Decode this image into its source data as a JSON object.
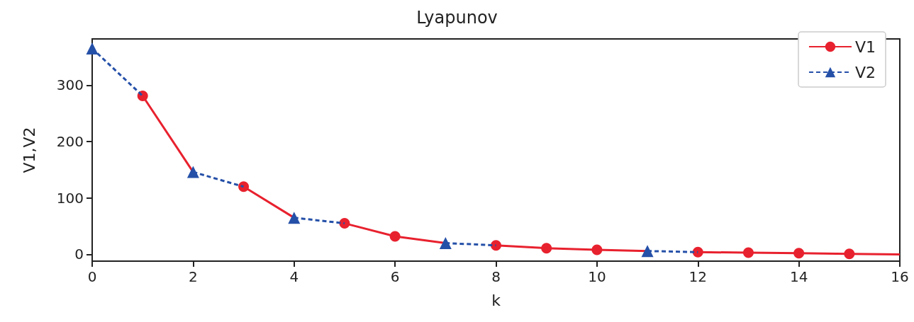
{
  "chart_data": {
    "type": "line",
    "title": "Lyapunov",
    "xlabel": "k",
    "ylabel": "V1,V2",
    "xlim": [
      0,
      16
    ],
    "xticks": [
      0,
      2,
      4,
      6,
      8,
      10,
      12,
      14,
      16
    ],
    "ylim": [
      -12,
      382
    ],
    "yticks": [
      0,
      100,
      200,
      300
    ],
    "grid": false,
    "legend": "top right",
    "series": [
      {
        "name": "V1",
        "color": "#e8212e",
        "marker": "circle",
        "line_style": "solid",
        "x": [
          1,
          2,
          2.5,
          3,
          4,
          4.5,
          5,
          6,
          7,
          7.5,
          8,
          9,
          10,
          11,
          11.5,
          12,
          13,
          14,
          15,
          16
        ],
        "values": [
          281,
          146,
          null,
          120,
          65,
          null,
          55,
          32,
          20,
          null,
          16,
          11,
          8,
          6,
          null,
          4,
          3,
          2,
          1,
          0
        ]
      },
      {
        "name": "V2",
        "color": "#2550a8",
        "marker": "triangle",
        "line_style": "dashed",
        "x": [
          0,
          1,
          1.5,
          2,
          3,
          3.5,
          4,
          5,
          5.5,
          7,
          8,
          8.5,
          11,
          12
        ],
        "values": [
          365,
          281,
          null,
          146,
          120,
          null,
          65,
          55,
          null,
          20,
          16,
          null,
          6,
          4
        ]
      }
    ]
  }
}
